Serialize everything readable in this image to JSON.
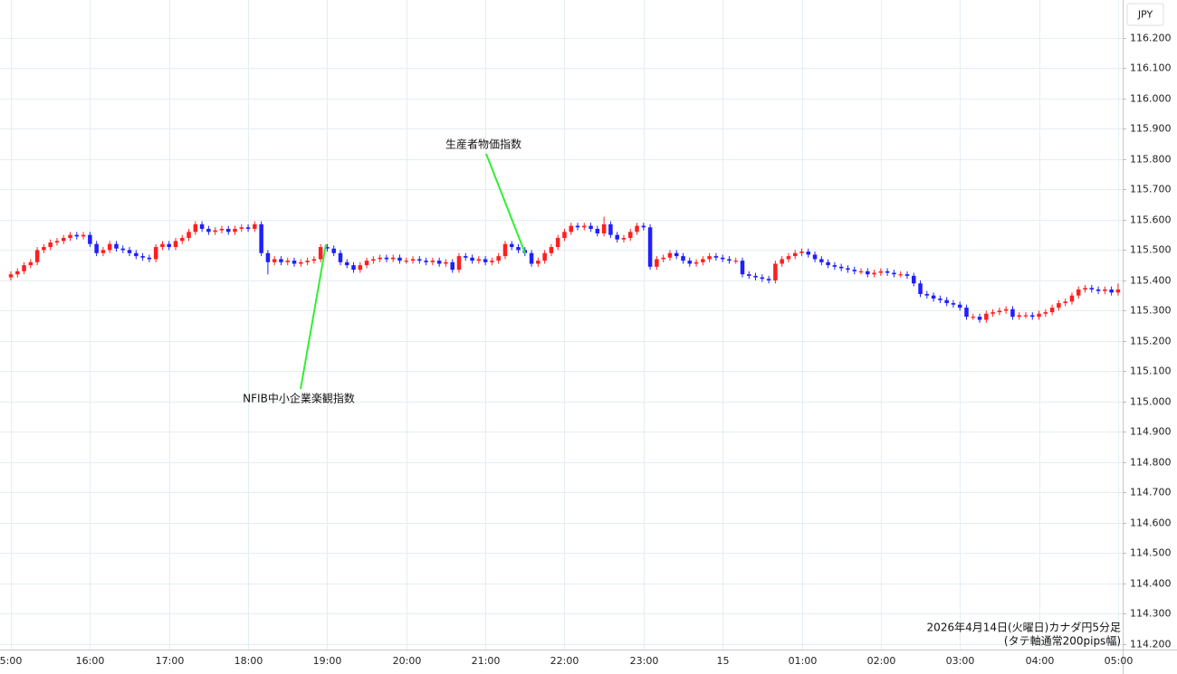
{
  "chart_data": {
    "type": "candlestick",
    "currency": "JPY",
    "up_color": "#ff1f1f",
    "down_color": "#1f1fff",
    "grid": true,
    "xlim": [
      -1.65,
      168.7
    ],
    "ylim": [
      114.182,
      116.325
    ],
    "xticks": [
      {
        "value": 0,
        "label": "5:00"
      },
      {
        "value": 12,
        "label": "16:00"
      },
      {
        "value": 24,
        "label": "17:00"
      },
      {
        "value": 36,
        "label": "18:00"
      },
      {
        "value": 48,
        "label": "19:00"
      },
      {
        "value": 60,
        "label": "20:00"
      },
      {
        "value": 72,
        "label": "21:00"
      },
      {
        "value": 84,
        "label": "22:00"
      },
      {
        "value": 96,
        "label": "23:00"
      },
      {
        "value": 108,
        "label": "15"
      },
      {
        "value": 120,
        "label": "01:00"
      },
      {
        "value": 132,
        "label": "02:00"
      },
      {
        "value": 144,
        "label": "03:00"
      },
      {
        "value": 156,
        "label": "04:00"
      },
      {
        "value": 168,
        "label": "05:00"
      }
    ],
    "yticks": [
      {
        "value": 116.2,
        "label": "116.200"
      },
      {
        "value": 116.1,
        "label": "116.100"
      },
      {
        "value": 116.0,
        "label": "116.000"
      },
      {
        "value": 115.9,
        "label": "115.900"
      },
      {
        "value": 115.8,
        "label": "115.800"
      },
      {
        "value": 115.7,
        "label": "115.700"
      },
      {
        "value": 115.6,
        "label": "115.600"
      },
      {
        "value": 115.5,
        "label": "115.500"
      },
      {
        "value": 115.4,
        "label": "115.400"
      },
      {
        "value": 115.3,
        "label": "115.300"
      },
      {
        "value": 115.2,
        "label": "115.200"
      },
      {
        "value": 115.1,
        "label": "115.100"
      },
      {
        "value": 115.0,
        "label": "115.000"
      },
      {
        "value": 114.9,
        "label": "114.900"
      },
      {
        "value": 114.8,
        "label": "114.800"
      },
      {
        "value": 114.7,
        "label": "114.700"
      },
      {
        "value": 114.6,
        "label": "114.600"
      },
      {
        "value": 114.5,
        "label": "114.500"
      },
      {
        "value": 114.4,
        "label": "114.400"
      },
      {
        "value": 114.3,
        "label": "114.300"
      },
      {
        "value": 114.2,
        "label": "114.200"
      }
    ],
    "annotations": [
      {
        "text": "生産者物価指数"
      },
      {
        "text": "NFIB中小企業楽観指数"
      }
    ],
    "footnote": [
      "2026年4月14日(火曜日)カナダ円5分足",
      "(タテ軸通常200pips幅)"
    ],
    "open": [
      115.41,
      115.42,
      115.43,
      115.45,
      115.46,
      115.5,
      115.51,
      115.525,
      115.53,
      115.54,
      115.55,
      115.545,
      115.55,
      115.52,
      115.49,
      115.5,
      115.52,
      115.505,
      115.5,
      115.49,
      115.48,
      115.475,
      115.47,
      115.51,
      115.52,
      115.51,
      115.53,
      115.54,
      115.56,
      115.585,
      115.57,
      115.56,
      115.565,
      115.57,
      115.56,
      115.57,
      115.575,
      115.57,
      115.585,
      115.49,
      115.46,
      115.47,
      115.46,
      115.465,
      115.455,
      115.46,
      115.465,
      115.47,
      115.51,
      115.505,
      115.49,
      115.46,
      115.45,
      115.435,
      115.45,
      115.465,
      115.47,
      115.475,
      115.47,
      115.475,
      115.465,
      115.465,
      115.47,
      115.465,
      115.46,
      115.465,
      115.455,
      115.46,
      115.435,
      115.48,
      115.475,
      115.465,
      115.47,
      115.46,
      115.465,
      115.48,
      115.52,
      115.51,
      115.5,
      115.49,
      115.455,
      115.465,
      115.49,
      115.51,
      115.54,
      115.56,
      115.58,
      115.575,
      115.58,
      115.57,
      115.555,
      115.585,
      115.55,
      115.535,
      115.54,
      115.56,
      115.58,
      115.575,
      115.445,
      115.47,
      115.475,
      115.49,
      115.48,
      115.465,
      115.455,
      115.46,
      115.47,
      115.48,
      115.475,
      115.47,
      115.465,
      115.465,
      115.42,
      115.415,
      115.41,
      115.405,
      115.4,
      115.455,
      115.47,
      115.48,
      115.49,
      115.495,
      115.485,
      115.47,
      115.46,
      115.45,
      115.445,
      115.44,
      115.435,
      115.43,
      115.43,
      115.42,
      115.425,
      115.43,
      115.425,
      115.42,
      115.42,
      115.415,
      115.39,
      115.355,
      115.35,
      115.34,
      115.335,
      115.325,
      115.32,
      115.31,
      115.28,
      115.28,
      115.27,
      115.29,
      115.295,
      115.3,
      115.305,
      115.28,
      115.285,
      115.285,
      115.28,
      115.29,
      115.295,
      115.31,
      115.325,
      115.33,
      115.35,
      115.37,
      115.375,
      115.37,
      115.365,
      115.37,
      115.36
    ],
    "high": [
      115.43,
      115.44,
      115.46,
      115.47,
      115.51,
      115.52,
      115.535,
      115.54,
      115.55,
      115.56,
      115.56,
      115.56,
      115.56,
      115.53,
      115.51,
      115.53,
      115.53,
      115.515,
      115.51,
      115.5,
      115.49,
      115.485,
      115.52,
      115.53,
      115.53,
      115.54,
      115.55,
      115.57,
      115.595,
      115.595,
      115.58,
      115.575,
      115.58,
      115.58,
      115.58,
      115.585,
      115.585,
      115.595,
      115.595,
      115.5,
      115.48,
      115.48,
      115.475,
      115.475,
      115.47,
      115.475,
      115.48,
      115.52,
      115.52,
      115.515,
      115.5,
      115.47,
      115.46,
      115.46,
      115.475,
      115.48,
      115.485,
      115.485,
      115.485,
      115.485,
      115.475,
      115.48,
      115.48,
      115.475,
      115.475,
      115.475,
      115.47,
      115.47,
      115.49,
      115.49,
      115.485,
      115.48,
      115.48,
      115.475,
      115.49,
      115.53,
      115.53,
      115.52,
      115.51,
      115.5,
      115.475,
      115.5,
      115.52,
      115.55,
      115.57,
      115.59,
      115.59,
      115.59,
      115.59,
      115.58,
      115.61,
      115.595,
      115.56,
      115.55,
      115.57,
      115.59,
      115.59,
      115.585,
      115.48,
      115.485,
      115.5,
      115.5,
      115.49,
      115.475,
      115.47,
      115.48,
      115.49,
      115.49,
      115.485,
      115.48,
      115.475,
      115.475,
      115.43,
      115.425,
      115.42,
      115.415,
      115.465,
      115.48,
      115.49,
      115.5,
      115.505,
      115.505,
      115.495,
      115.48,
      115.47,
      115.46,
      115.455,
      115.45,
      115.445,
      115.44,
      115.44,
      115.435,
      115.44,
      115.44,
      115.435,
      115.43,
      115.43,
      115.425,
      115.4,
      115.365,
      115.36,
      115.35,
      115.345,
      115.335,
      115.33,
      115.32,
      115.29,
      115.29,
      115.3,
      115.305,
      115.31,
      115.315,
      115.315,
      115.295,
      115.295,
      115.295,
      115.3,
      115.305,
      115.32,
      115.335,
      115.34,
      115.36,
      115.38,
      115.385,
      115.385,
      115.38,
      115.38,
      115.38,
      115.39
    ],
    "low": [
      115.4,
      115.41,
      115.42,
      115.44,
      115.45,
      115.49,
      115.5,
      115.515,
      115.52,
      115.53,
      115.535,
      115.535,
      115.51,
      115.48,
      115.48,
      115.49,
      115.495,
      115.49,
      115.48,
      115.47,
      115.465,
      115.46,
      115.46,
      115.5,
      115.5,
      115.5,
      115.52,
      115.53,
      115.55,
      115.56,
      115.55,
      115.55,
      115.555,
      115.55,
      115.55,
      115.56,
      115.56,
      115.56,
      115.48,
      115.42,
      115.45,
      115.45,
      115.45,
      115.445,
      115.445,
      115.45,
      115.455,
      115.46,
      115.495,
      115.48,
      115.45,
      115.44,
      115.425,
      115.425,
      115.44,
      115.455,
      115.46,
      115.46,
      115.46,
      115.455,
      115.455,
      115.455,
      115.455,
      115.45,
      115.45,
      115.445,
      115.445,
      115.425,
      115.425,
      115.465,
      115.455,
      115.455,
      115.45,
      115.45,
      115.455,
      115.47,
      115.5,
      115.49,
      115.48,
      115.445,
      115.445,
      115.455,
      115.48,
      115.5,
      115.53,
      115.55,
      115.565,
      115.565,
      115.56,
      115.545,
      115.545,
      115.54,
      115.525,
      115.525,
      115.53,
      115.55,
      115.565,
      115.435,
      115.435,
      115.46,
      115.465,
      115.47,
      115.455,
      115.445,
      115.445,
      115.45,
      115.46,
      115.465,
      115.46,
      115.455,
      115.455,
      115.41,
      115.405,
      115.4,
      115.395,
      115.39,
      115.39,
      115.445,
      115.46,
      115.47,
      115.48,
      115.475,
      115.46,
      115.45,
      115.44,
      115.435,
      115.43,
      115.425,
      115.42,
      115.42,
      115.41,
      115.41,
      115.415,
      115.415,
      115.41,
      115.41,
      115.405,
      115.38,
      115.345,
      115.34,
      115.33,
      115.325,
      115.315,
      115.31,
      115.3,
      115.27,
      115.27,
      115.26,
      115.26,
      115.28,
      115.285,
      115.29,
      115.27,
      115.27,
      115.275,
      115.27,
      115.27,
      115.28,
      115.285,
      115.3,
      115.315,
      115.32,
      115.34,
      115.36,
      115.36,
      115.355,
      115.355,
      115.35,
      115.35
    ],
    "close": [
      115.42,
      115.43,
      115.45,
      115.46,
      115.5,
      115.51,
      115.525,
      115.53,
      115.54,
      115.55,
      115.545,
      115.55,
      115.52,
      115.49,
      115.5,
      115.52,
      115.505,
      115.5,
      115.49,
      115.48,
      115.475,
      115.47,
      115.51,
      115.52,
      115.51,
      115.53,
      115.54,
      115.56,
      115.585,
      115.57,
      115.56,
      115.565,
      115.57,
      115.56,
      115.57,
      115.575,
      115.57,
      115.585,
      115.49,
      115.46,
      115.47,
      115.46,
      115.465,
      115.455,
      115.46,
      115.465,
      115.47,
      115.51,
      115.505,
      115.49,
      115.46,
      115.45,
      115.435,
      115.45,
      115.465,
      115.47,
      115.475,
      115.47,
      115.475,
      115.465,
      115.465,
      115.47,
      115.465,
      115.46,
      115.465,
      115.455,
      115.46,
      115.435,
      115.48,
      115.475,
      115.465,
      115.47,
      115.46,
      115.465,
      115.48,
      115.52,
      115.51,
      115.5,
      115.49,
      115.455,
      115.465,
      115.49,
      115.51,
      115.54,
      115.56,
      115.58,
      115.575,
      115.58,
      115.57,
      115.555,
      115.585,
      115.55,
      115.535,
      115.54,
      115.56,
      115.58,
      115.575,
      115.445,
      115.47,
      115.475,
      115.49,
      115.48,
      115.465,
      115.455,
      115.46,
      115.47,
      115.48,
      115.475,
      115.47,
      115.465,
      115.465,
      115.42,
      115.415,
      115.41,
      115.405,
      115.4,
      115.455,
      115.47,
      115.48,
      115.49,
      115.495,
      115.485,
      115.47,
      115.46,
      115.45,
      115.445,
      115.44,
      115.435,
      115.43,
      115.43,
      115.42,
      115.425,
      115.43,
      115.425,
      115.42,
      115.42,
      115.415,
      115.39,
      115.355,
      115.35,
      115.34,
      115.335,
      115.325,
      115.32,
      115.31,
      115.28,
      115.28,
      115.27,
      115.29,
      115.295,
      115.3,
      115.305,
      115.28,
      115.285,
      115.285,
      115.28,
      115.29,
      115.295,
      115.31,
      115.325,
      115.33,
      115.35,
      115.37,
      115.375,
      115.37,
      115.365,
      115.37,
      115.36,
      115.37
    ]
  }
}
